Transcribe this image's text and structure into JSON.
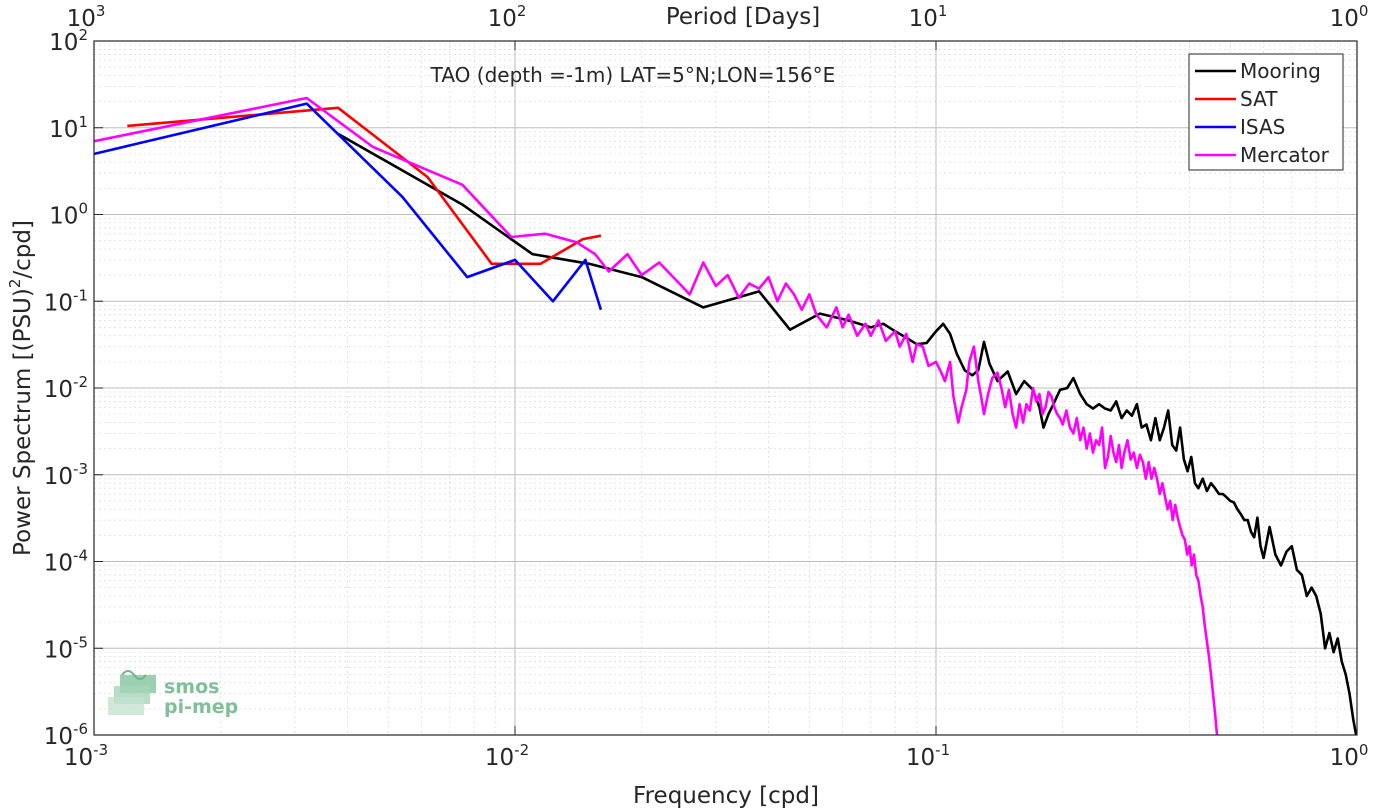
{
  "chart_data": {
    "type": "line",
    "title": "TAO (depth =-1m) LAT=5°N;LON=156°E",
    "xlabel": "Frequency [cpd]",
    "ylabel": "Power Spectrum [(PSU)",
    "ylabel_sup": "2",
    "ylabel_tail": "/cpd]",
    "top_xlabel": "Period [Days]",
    "xscale": "log",
    "yscale": "log",
    "xlim": [
      0.001,
      1
    ],
    "ylim": [
      1e-06,
      100
    ],
    "grid": true,
    "minor_grid": true,
    "legend_position": "top-right",
    "x_ticks": [
      {
        "value": 0.001,
        "base": "10",
        "exp": "-3"
      },
      {
        "value": 0.01,
        "base": "10",
        "exp": "-2"
      },
      {
        "value": 0.1,
        "base": "10",
        "exp": "-1"
      },
      {
        "value": 1,
        "base": "10",
        "exp": "0"
      }
    ],
    "top_ticks": [
      {
        "value": 0.001,
        "base": "10",
        "exp": "3"
      },
      {
        "value": 0.01,
        "base": "10",
        "exp": "2"
      },
      {
        "value": 0.1,
        "base": "10",
        "exp": "1"
      },
      {
        "value": 1,
        "base": "10",
        "exp": "0"
      }
    ],
    "y_ticks": [
      {
        "value": 100,
        "base": "10",
        "exp": "2"
      },
      {
        "value": 10,
        "base": "10",
        "exp": "1"
      },
      {
        "value": 1,
        "base": "10",
        "exp": "0"
      },
      {
        "value": 0.1,
        "base": "10",
        "exp": "-1"
      },
      {
        "value": 0.01,
        "base": "10",
        "exp": "-2"
      },
      {
        "value": 0.001,
        "base": "10",
        "exp": "-3"
      },
      {
        "value": 0.0001,
        "base": "10",
        "exp": "-4"
      },
      {
        "value": 1e-05,
        "base": "10",
        "exp": "-5"
      },
      {
        "value": 1e-06,
        "base": "10",
        "exp": "-6"
      }
    ],
    "series": [
      {
        "name": "Mooring",
        "color": "#000000",
        "points": [
          [
            0.0038,
            8.5
          ],
          [
            0.0075,
            1.3
          ],
          [
            0.011,
            0.35
          ],
          [
            0.015,
            0.27
          ],
          [
            0.02,
            0.19
          ],
          [
            0.028,
            0.085
          ],
          [
            0.038,
            0.13
          ],
          [
            0.045,
            0.047
          ],
          [
            0.053,
            0.072
          ],
          [
            0.062,
            0.06
          ],
          [
            0.07,
            0.05
          ],
          [
            0.075,
            0.055
          ],
          [
            0.08,
            0.045
          ],
          [
            0.085,
            0.038
          ],
          [
            0.09,
            0.032
          ],
          [
            0.095,
            0.033
          ],
          [
            0.1,
            0.045
          ],
          [
            0.104,
            0.055
          ],
          [
            0.108,
            0.042
          ],
          [
            0.112,
            0.025
          ],
          [
            0.117,
            0.016
          ],
          [
            0.122,
            0.014
          ],
          [
            0.126,
            0.016
          ],
          [
            0.13,
            0.034
          ],
          [
            0.134,
            0.019
          ],
          [
            0.14,
            0.012
          ],
          [
            0.148,
            0.0155
          ],
          [
            0.155,
            0.0085
          ],
          [
            0.162,
            0.012
          ],
          [
            0.17,
            0.0095
          ],
          [
            0.176,
            0.006
          ],
          [
            0.18,
            0.0035
          ],
          [
            0.185,
            0.005
          ],
          [
            0.19,
            0.0065
          ],
          [
            0.197,
            0.0095
          ],
          [
            0.205,
            0.01
          ],
          [
            0.212,
            0.013
          ],
          [
            0.22,
            0.0085
          ],
          [
            0.228,
            0.0065
          ],
          [
            0.236,
            0.0058
          ],
          [
            0.244,
            0.0065
          ],
          [
            0.252,
            0.0058
          ],
          [
            0.26,
            0.0055
          ],
          [
            0.268,
            0.007
          ],
          [
            0.276,
            0.0045
          ],
          [
            0.284,
            0.0055
          ],
          [
            0.292,
            0.0048
          ],
          [
            0.3,
            0.0065
          ],
          [
            0.308,
            0.0035
          ],
          [
            0.316,
            0.0038
          ],
          [
            0.324,
            0.0025
          ],
          [
            0.332,
            0.0045
          ],
          [
            0.34,
            0.0025
          ],
          [
            0.348,
            0.0035
          ],
          [
            0.356,
            0.0055
          ],
          [
            0.364,
            0.0022
          ],
          [
            0.372,
            0.0019
          ],
          [
            0.38,
            0.0035
          ],
          [
            0.388,
            0.0015
          ],
          [
            0.396,
            0.0011
          ],
          [
            0.404,
            0.0016
          ],
          [
            0.412,
            0.0008
          ],
          [
            0.42,
            0.0007
          ],
          [
            0.43,
            0.0009
          ],
          [
            0.44,
            0.00065
          ],
          [
            0.45,
            0.0008
          ],
          [
            0.46,
            0.0007
          ],
          [
            0.47,
            0.0006
          ],
          [
            0.48,
            0.0006
          ],
          [
            0.49,
            0.00055
          ],
          [
            0.5,
            0.0005
          ],
          [
            0.51,
            0.00048
          ],
          [
            0.52,
            0.0004
          ],
          [
            0.53,
            0.00035
          ],
          [
            0.54,
            0.0003
          ],
          [
            0.55,
            0.0003
          ],
          [
            0.56,
            0.00022
          ],
          [
            0.57,
            0.00019
          ],
          [
            0.58,
            0.00032
          ],
          [
            0.59,
            0.00015
          ],
          [
            0.6,
            0.00011
          ],
          [
            0.62,
            0.00025
          ],
          [
            0.64,
            0.00012
          ],
          [
            0.66,
            9e-05
          ],
          [
            0.68,
            0.00013
          ],
          [
            0.7,
            0.00015
          ],
          [
            0.72,
            8e-05
          ],
          [
            0.74,
            7e-05
          ],
          [
            0.76,
            4e-05
          ],
          [
            0.78,
            5e-05
          ],
          [
            0.8,
            4e-05
          ],
          [
            0.82,
            2.5e-05
          ],
          [
            0.84,
            1e-05
          ],
          [
            0.86,
            1.5e-05
          ],
          [
            0.88,
            9e-06
          ],
          [
            0.9,
            1.3e-05
          ],
          [
            0.92,
            7e-06
          ],
          [
            0.94,
            5e-06
          ],
          [
            0.96,
            3e-06
          ],
          [
            0.98,
            1.5e-06
          ],
          [
            0.995,
            1e-06
          ]
        ]
      },
      {
        "name": "SAT",
        "color": "#ff0000",
        "points": [
          [
            0.0012,
            10.5
          ],
          [
            0.0038,
            17
          ],
          [
            0.0062,
            2.7
          ],
          [
            0.0088,
            0.27
          ],
          [
            0.0115,
            0.27
          ],
          [
            0.0145,
            0.52
          ],
          [
            0.016,
            0.57
          ]
        ]
      },
      {
        "name": "ISAS",
        "color": "#0000ff",
        "points": [
          [
            0.001,
            5
          ],
          [
            0.0032,
            19
          ],
          [
            0.0054,
            1.6
          ],
          [
            0.0077,
            0.19
          ],
          [
            0.01,
            0.3
          ],
          [
            0.0123,
            0.1
          ],
          [
            0.0147,
            0.3
          ],
          [
            0.016,
            0.08
          ]
        ]
      },
      {
        "name": "Mercator",
        "color": "#ff00ff",
        "points": [
          [
            0.001,
            7
          ],
          [
            0.0032,
            22
          ],
          [
            0.0046,
            6
          ],
          [
            0.0075,
            2.2
          ],
          [
            0.0098,
            0.55
          ],
          [
            0.0118,
            0.6
          ],
          [
            0.014,
            0.48
          ],
          [
            0.0155,
            0.35
          ],
          [
            0.0167,
            0.22
          ],
          [
            0.0185,
            0.35
          ],
          [
            0.02,
            0.2
          ],
          [
            0.022,
            0.28
          ],
          [
            0.024,
            0.18
          ],
          [
            0.026,
            0.12
          ],
          [
            0.028,
            0.28
          ],
          [
            0.03,
            0.15
          ],
          [
            0.032,
            0.2
          ],
          [
            0.034,
            0.11
          ],
          [
            0.036,
            0.16
          ],
          [
            0.038,
            0.14
          ],
          [
            0.04,
            0.19
          ],
          [
            0.042,
            0.1
          ],
          [
            0.044,
            0.16
          ],
          [
            0.046,
            0.12
          ],
          [
            0.048,
            0.08
          ],
          [
            0.05,
            0.12
          ],
          [
            0.052,
            0.07
          ],
          [
            0.055,
            0.05
          ],
          [
            0.058,
            0.085
          ],
          [
            0.06,
            0.05
          ],
          [
            0.062,
            0.07
          ],
          [
            0.065,
            0.04
          ],
          [
            0.068,
            0.055
          ],
          [
            0.07,
            0.04
          ],
          [
            0.073,
            0.06
          ],
          [
            0.076,
            0.035
          ],
          [
            0.08,
            0.045
          ],
          [
            0.082,
            0.03
          ],
          [
            0.085,
            0.042
          ],
          [
            0.088,
            0.02
          ],
          [
            0.09,
            0.032
          ],
          [
            0.093,
            0.03
          ],
          [
            0.096,
            0.018
          ],
          [
            0.1,
            0.02
          ],
          [
            0.103,
            0.015
          ],
          [
            0.105,
            0.012
          ],
          [
            0.108,
            0.02
          ],
          [
            0.11,
            0.008
          ],
          [
            0.113,
            0.004
          ],
          [
            0.115,
            0.006
          ],
          [
            0.118,
            0.0095
          ],
          [
            0.12,
            0.02
          ],
          [
            0.123,
            0.03
          ],
          [
            0.126,
            0.012
          ],
          [
            0.128,
            0.008
          ],
          [
            0.13,
            0.005
          ],
          [
            0.133,
            0.0085
          ],
          [
            0.136,
            0.013
          ],
          [
            0.14,
            0.015
          ],
          [
            0.143,
            0.01
          ],
          [
            0.146,
            0.006
          ],
          [
            0.149,
            0.0095
          ],
          [
            0.152,
            0.005
          ],
          [
            0.155,
            0.0035
          ],
          [
            0.158,
            0.0065
          ],
          [
            0.161,
            0.004
          ],
          [
            0.164,
            0.0065
          ],
          [
            0.167,
            0.0055
          ],
          [
            0.17,
            0.01
          ],
          [
            0.173,
            0.007
          ],
          [
            0.176,
            0.0085
          ],
          [
            0.179,
            0.005
          ],
          [
            0.182,
            0.006
          ],
          [
            0.185,
            0.009
          ],
          [
            0.188,
            0.008
          ],
          [
            0.191,
            0.006
          ],
          [
            0.194,
            0.005
          ],
          [
            0.197,
            0.0045
          ],
          [
            0.2,
            0.0038
          ],
          [
            0.204,
            0.0055
          ],
          [
            0.208,
            0.0035
          ],
          [
            0.212,
            0.003
          ],
          [
            0.216,
            0.0045
          ],
          [
            0.22,
            0.0025
          ],
          [
            0.224,
            0.0035
          ],
          [
            0.228,
            0.002
          ],
          [
            0.232,
            0.003
          ],
          [
            0.236,
            0.0018
          ],
          [
            0.24,
            0.0025
          ],
          [
            0.244,
            0.0022
          ],
          [
            0.248,
            0.0035
          ],
          [
            0.252,
            0.0012
          ],
          [
            0.256,
            0.0016
          ],
          [
            0.26,
            0.0028
          ],
          [
            0.264,
            0.0018
          ],
          [
            0.268,
            0.0014
          ],
          [
            0.272,
            0.0022
          ],
          [
            0.276,
            0.0012
          ],
          [
            0.28,
            0.0018
          ],
          [
            0.285,
            0.0025
          ],
          [
            0.29,
            0.0015
          ],
          [
            0.295,
            0.0018
          ],
          [
            0.3,
            0.0012
          ],
          [
            0.305,
            0.0017
          ],
          [
            0.31,
            0.0014
          ],
          [
            0.315,
            0.0009
          ],
          [
            0.32,
            0.0014
          ],
          [
            0.325,
            0.0009
          ],
          [
            0.33,
            0.0012
          ],
          [
            0.335,
            0.0009
          ],
          [
            0.34,
            0.0006
          ],
          [
            0.345,
            0.0008
          ],
          [
            0.35,
            0.00055
          ],
          [
            0.355,
            0.0004
          ],
          [
            0.36,
            0.0005
          ],
          [
            0.365,
            0.0003
          ],
          [
            0.37,
            0.00045
          ],
          [
            0.375,
            0.00032
          ],
          [
            0.38,
            0.00025
          ],
          [
            0.385,
            0.0002
          ],
          [
            0.39,
            0.00018
          ],
          [
            0.395,
            0.00012
          ],
          [
            0.4,
            0.00015
          ],
          [
            0.405,
            9e-05
          ],
          [
            0.41,
            0.00012
          ],
          [
            0.415,
            7e-05
          ],
          [
            0.42,
            6e-05
          ],
          [
            0.425,
            4e-05
          ],
          [
            0.43,
            3e-05
          ],
          [
            0.435,
            1.8e-05
          ],
          [
            0.44,
            1.2e-05
          ],
          [
            0.445,
            8e-06
          ],
          [
            0.45,
            5e-06
          ],
          [
            0.455,
            3e-06
          ],
          [
            0.46,
            1.8e-06
          ],
          [
            0.465,
            1e-06
          ]
        ]
      }
    ]
  },
  "logo": {
    "line1": "smos",
    "line2": "pi-mep"
  }
}
